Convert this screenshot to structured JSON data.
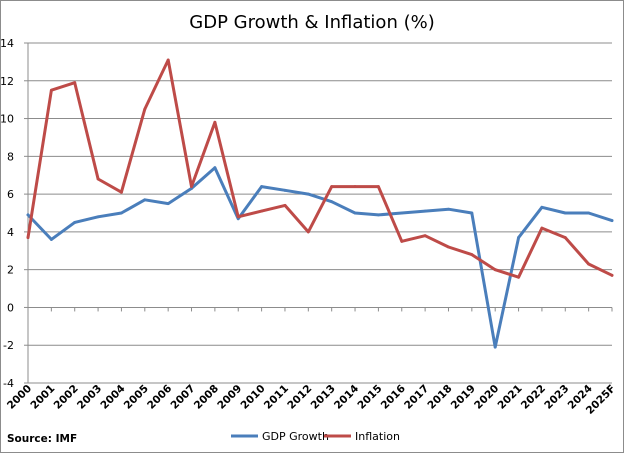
{
  "chart_data": {
    "type": "line",
    "title": "GDP Growth & Inflation (%)",
    "xlabel": "",
    "ylabel": "",
    "ylim": [
      -4,
      14
    ],
    "yticks": [
      -4,
      -2,
      0,
      2,
      4,
      6,
      8,
      10,
      12,
      14
    ],
    "grid": true,
    "legend_position": "bottom",
    "categories": [
      "2000",
      "2001",
      "2002",
      "2003",
      "2004",
      "2005",
      "2006",
      "2007",
      "2008",
      "2009",
      "2010",
      "2011",
      "2012",
      "2013",
      "2014",
      "2015",
      "2016",
      "2017",
      "2018",
      "2019",
      "2020",
      "2021",
      "2022",
      "2023",
      "2024",
      "2025F"
    ],
    "series": [
      {
        "name": "GDP Growth",
        "color": "#4a7ebb",
        "values": [
          4.9,
          3.6,
          4.5,
          4.8,
          5.0,
          5.7,
          5.5,
          6.3,
          7.4,
          4.7,
          6.4,
          6.2,
          6.0,
          5.6,
          5.0,
          4.9,
          5.0,
          5.1,
          5.2,
          5.0,
          -2.1,
          3.7,
          5.3,
          5.0,
          5.0,
          4.6
        ]
      },
      {
        "name": "Inflation",
        "color": "#be4b48",
        "values": [
          3.7,
          11.5,
          11.9,
          6.8,
          6.1,
          10.5,
          13.1,
          6.4,
          9.8,
          4.8,
          5.1,
          5.4,
          4.0,
          6.4,
          6.4,
          6.4,
          3.5,
          3.8,
          3.2,
          2.8,
          2.0,
          1.6,
          4.2,
          3.7,
          2.3,
          1.7
        ]
      }
    ],
    "source": "Source: IMF"
  }
}
